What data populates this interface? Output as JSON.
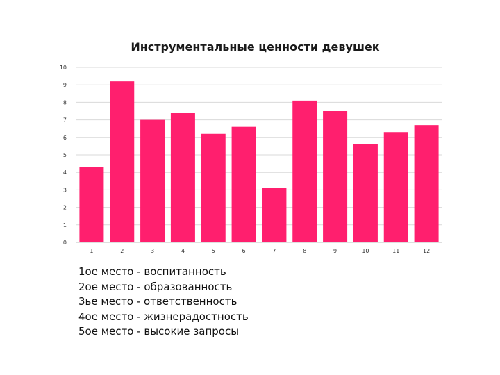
{
  "chart_data": {
    "type": "bar",
    "title": "Инструментальные ценности девушек",
    "xlabel": "",
    "ylabel": "",
    "categories": [
      "1",
      "2",
      "3",
      "4",
      "5",
      "6",
      "7",
      "8",
      "9",
      "10",
      "11",
      "12"
    ],
    "values": [
      4.3,
      9.2,
      7.0,
      7.4,
      6.2,
      6.6,
      3.1,
      8.1,
      7.5,
      5.6,
      6.3,
      6.7
    ],
    "ylim": [
      0,
      10
    ],
    "yticks": [
      "0",
      "1",
      "2",
      "3",
      "4",
      "5",
      "6",
      "7",
      "8",
      "9",
      "10"
    ],
    "grid": true,
    "bar_color": "#ff1f6e"
  },
  "ranking": [
    "1ое место - воспитанность",
    "2ое место - образованность",
    "3ье место - ответственность",
    "4ое место - жизнерадостность",
    "5ое место - высокие запросы"
  ]
}
